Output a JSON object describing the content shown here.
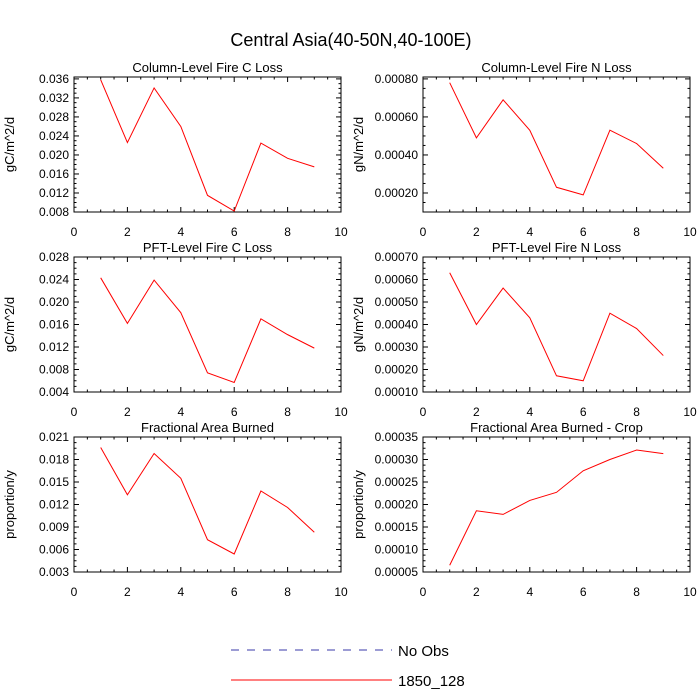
{
  "title": "Central Asia(40-50N,40-100E)",
  "colors": {
    "series": "#ff0000",
    "obs": "#3a3aa8",
    "axis": "#000000"
  },
  "legend": {
    "placement": "bottom-center",
    "entries": [
      {
        "label": "No Obs",
        "style": "dashed",
        "color": "#3a3aa8"
      },
      {
        "label": "1850_128",
        "style": "solid",
        "color": "#ff0000"
      }
    ]
  },
  "chart_data": [
    {
      "type": "line",
      "title": "Column-Level Fire C Loss",
      "ylabel": "gC/m^2/d",
      "xlim": [
        0,
        10
      ],
      "ylim": [
        0.008,
        0.0364
      ],
      "xticks": [
        0,
        2,
        4,
        6,
        8,
        10
      ],
      "xticklabels": [
        "0",
        "2",
        "4",
        "6",
        "8",
        "10"
      ],
      "yticks": [
        0.008,
        0.012,
        0.016,
        0.02,
        0.024,
        0.028,
        0.032,
        0.036
      ],
      "yticklabels": [
        "0.008",
        "0.012",
        "0.016",
        "0.020",
        "0.024",
        "0.028",
        "0.032",
        "0.036"
      ],
      "x": [
        1,
        2,
        3,
        4,
        5,
        6,
        7,
        8,
        9
      ],
      "series": [
        {
          "name": "1850_128",
          "values": [
            0.0358,
            0.0226,
            0.0341,
            0.026,
            0.0115,
            0.0082,
            0.0225,
            0.0193,
            0.0175
          ]
        }
      ]
    },
    {
      "type": "line",
      "title": "Column-Level Fire N Loss",
      "ylabel": "gN/m^2/d",
      "xlim": [
        0,
        10
      ],
      "ylim": [
        0.0001,
        0.00081
      ],
      "xticks": [
        0,
        2,
        4,
        6,
        8,
        10
      ],
      "xticklabels": [
        "0",
        "2",
        "4",
        "6",
        "8",
        "10"
      ],
      "yticks": [
        0.0002,
        0.0004,
        0.0006,
        0.0008
      ],
      "yticklabels": [
        "0.00020",
        "0.00040",
        "0.00060",
        "0.00080"
      ],
      "x": [
        1,
        2,
        3,
        4,
        5,
        6,
        7,
        8,
        9
      ],
      "series": [
        {
          "name": "1850_128",
          "values": [
            0.00078,
            0.00049,
            0.00069,
            0.00053,
            0.00023,
            0.00019,
            0.00053,
            0.00046,
            0.00033
          ]
        }
      ]
    },
    {
      "type": "line",
      "title": "PFT-Level Fire C Loss",
      "ylabel": "gC/m^2/d",
      "xlim": [
        0,
        10
      ],
      "ylim": [
        0.004,
        0.028
      ],
      "xticks": [
        0,
        2,
        4,
        6,
        8,
        10
      ],
      "xticklabels": [
        "0",
        "2",
        "4",
        "6",
        "8",
        "10"
      ],
      "yticks": [
        0.004,
        0.008,
        0.012,
        0.016,
        0.02,
        0.024,
        0.028
      ],
      "yticklabels": [
        "0.004",
        "0.008",
        "0.012",
        "0.016",
        "0.020",
        "0.024",
        "0.028"
      ],
      "x": [
        1,
        2,
        3,
        4,
        5,
        6,
        7,
        8,
        9
      ],
      "series": [
        {
          "name": "1850_128",
          "values": [
            0.0243,
            0.0162,
            0.0239,
            0.0181,
            0.0074,
            0.0057,
            0.017,
            0.0142,
            0.0118
          ]
        }
      ]
    },
    {
      "type": "line",
      "title": "PFT-Level Fire N Loss",
      "ylabel": "gN/m^2/d",
      "xlim": [
        0,
        10
      ],
      "ylim": [
        0.0001,
        0.0007
      ],
      "xticks": [
        0,
        2,
        4,
        6,
        8,
        10
      ],
      "xticklabels": [
        "0",
        "2",
        "4",
        "6",
        "8",
        "10"
      ],
      "yticks": [
        0.0001,
        0.0002,
        0.0003,
        0.0004,
        0.0005,
        0.0006,
        0.0007
      ],
      "yticklabels": [
        "0.00010",
        "0.00020",
        "0.00030",
        "0.00040",
        "0.00050",
        "0.00060",
        "0.00070"
      ],
      "x": [
        1,
        2,
        3,
        4,
        5,
        6,
        7,
        8,
        9
      ],
      "series": [
        {
          "name": "1850_128",
          "values": [
            0.00063,
            0.0004,
            0.000562,
            0.00043,
            0.000172,
            0.00015,
            0.00045,
            0.000382,
            0.000262
          ]
        }
      ]
    },
    {
      "type": "line",
      "title": "Fractional Area Burned",
      "ylabel": "proportion/y",
      "xlim": [
        0,
        10
      ],
      "ylim": [
        0.003,
        0.021
      ],
      "xticks": [
        0,
        2,
        4,
        6,
        8,
        10
      ],
      "xticklabels": [
        "0",
        "2",
        "4",
        "6",
        "8",
        "10"
      ],
      "yticks": [
        0.003,
        0.006,
        0.009,
        0.012,
        0.015,
        0.018,
        0.021
      ],
      "yticklabels": [
        "0.003",
        "0.006",
        "0.009",
        "0.012",
        "0.015",
        "0.018",
        "0.021"
      ],
      "x": [
        1,
        2,
        3,
        4,
        5,
        6,
        7,
        8,
        9
      ],
      "series": [
        {
          "name": "1850_128",
          "values": [
            0.0196,
            0.0133,
            0.0188,
            0.0155,
            0.0073,
            0.0054,
            0.0138,
            0.0116,
            0.0083
          ]
        }
      ]
    },
    {
      "type": "line",
      "title": "Fractional Area Burned - Crop",
      "ylabel": "proportion/y",
      "xlim": [
        0,
        10
      ],
      "ylim": [
        5e-05,
        0.00035
      ],
      "xticks": [
        0,
        2,
        4,
        6,
        8,
        10
      ],
      "xticklabels": [
        "0",
        "2",
        "4",
        "6",
        "8",
        "10"
      ],
      "yticks": [
        5e-05,
        0.0001,
        0.00015,
        0.0002,
        0.00025,
        0.0003,
        0.00035
      ],
      "yticklabels": [
        "0.00005",
        "0.00010",
        "0.00015",
        "0.00020",
        "0.00025",
        "0.00030",
        "0.00035"
      ],
      "x": [
        1,
        2,
        3,
        4,
        5,
        6,
        7,
        8,
        9
      ],
      "series": [
        {
          "name": "1850_128",
          "values": [
            6.5e-05,
            0.000186,
            0.000178,
            0.000209,
            0.000227,
            0.000275,
            0.0003,
            0.000321,
            0.000313
          ]
        }
      ]
    }
  ]
}
